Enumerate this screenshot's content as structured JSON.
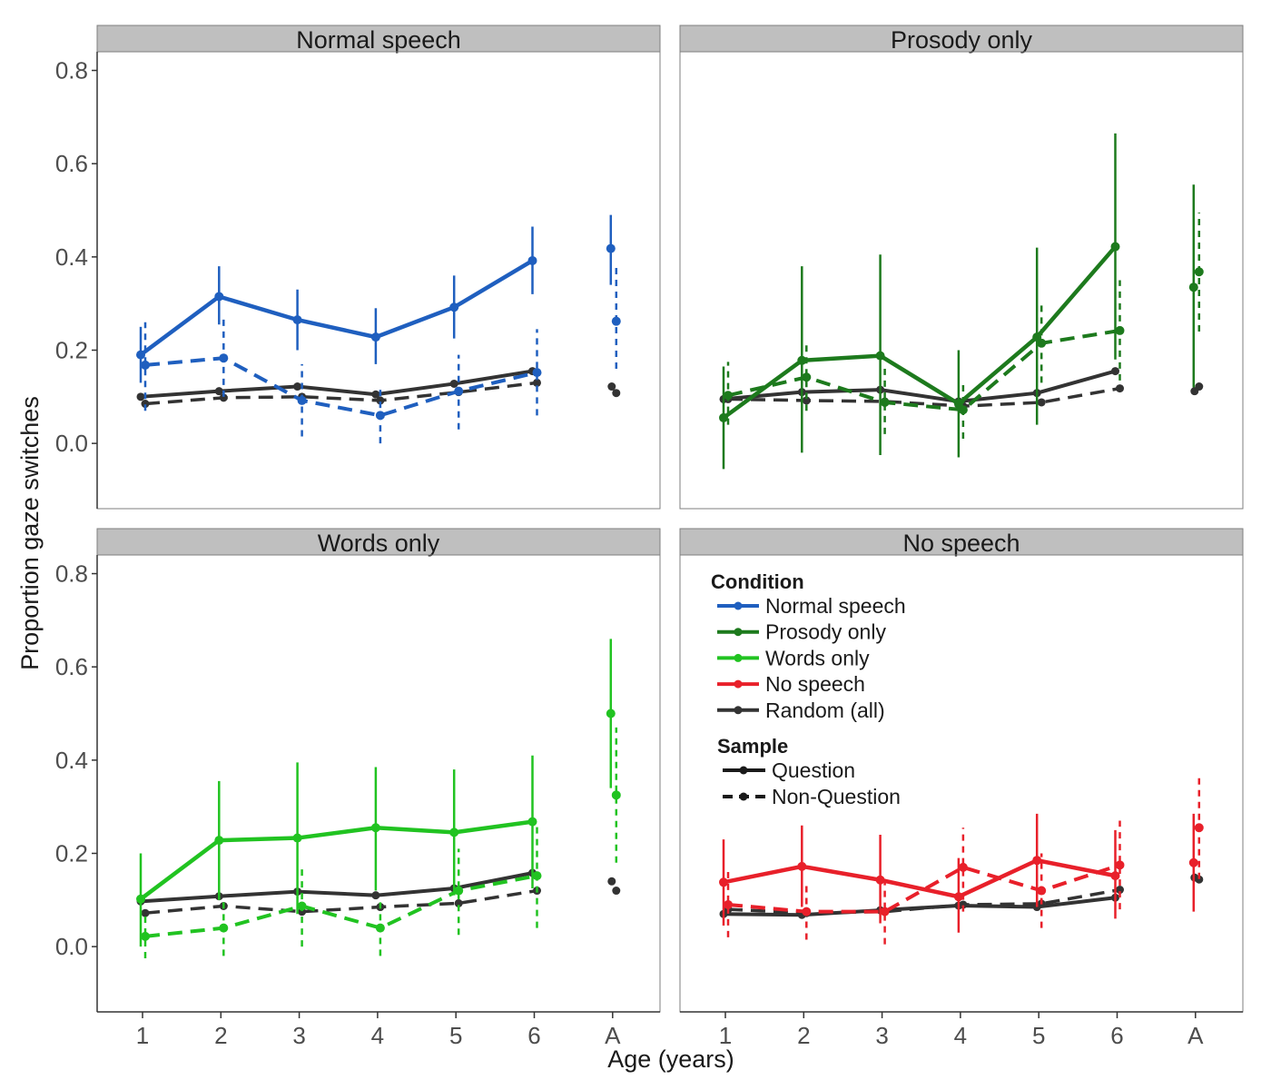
{
  "chart_data": {
    "type": "line",
    "xlabel": "Age (years)",
    "ylabel": "Proportion gaze switches",
    "x_categories": [
      "1",
      "2",
      "3",
      "4",
      "5",
      "6",
      "A"
    ],
    "ylim": [
      -0.14,
      0.84
    ],
    "yticks": [
      0.0,
      0.2,
      0.4,
      0.6,
      0.8
    ],
    "ytick_labels": [
      "0.0",
      "0.2",
      "0.4",
      "0.6",
      "0.8"
    ],
    "grid": false,
    "legend": {
      "position": "inside bottom-right panel",
      "condition_title": "Condition",
      "condition_entries": [
        {
          "label": "Normal speech",
          "color": "#1f5fbf"
        },
        {
          "label": "Prosody only",
          "color": "#1d7a1d"
        },
        {
          "label": "Words only",
          "color": "#21c321"
        },
        {
          "label": "No speech",
          "color": "#e8202a"
        },
        {
          "label": "Random (all)",
          "color": "#333333"
        }
      ],
      "sample_title": "Sample",
      "sample_entries": [
        {
          "label": "Question",
          "linestyle": "solid"
        },
        {
          "label": "Non-Question",
          "linestyle": "dashed"
        }
      ]
    },
    "panels": [
      {
        "title": "Normal speech",
        "color": "#1f5fbf",
        "question": {
          "y": [
            0.19,
            0.315,
            0.265,
            0.228,
            0.292,
            0.392
          ],
          "lo": [
            0.13,
            0.255,
            0.2,
            0.17,
            0.225,
            0.32
          ],
          "hi": [
            0.25,
            0.38,
            0.33,
            0.29,
            0.36,
            0.465
          ],
          "adult": {
            "y": 0.418,
            "lo": 0.34,
            "hi": 0.49
          }
        },
        "non_question": {
          "y": [
            0.168,
            0.183,
            0.092,
            0.06,
            0.112,
            0.152
          ],
          "lo": [
            0.07,
            0.1,
            0.015,
            0.0,
            0.03,
            0.06
          ],
          "hi": [
            0.26,
            0.27,
            0.17,
            0.12,
            0.19,
            0.245
          ],
          "adult": {
            "y": 0.262,
            "lo": 0.16,
            "hi": 0.38
          }
        },
        "random_question": {
          "y": [
            0.1,
            0.112,
            0.122,
            0.105,
            0.128,
            0.155
          ],
          "adult": 0.122
        },
        "random_non_question": {
          "y": [
            0.085,
            0.098,
            0.1,
            0.092,
            0.11,
            0.13
          ],
          "adult": 0.108
        }
      },
      {
        "title": "Prosody only",
        "color": "#1d7a1d",
        "question": {
          "y": [
            0.055,
            0.178,
            0.188,
            0.085,
            0.228,
            0.422
          ],
          "lo": [
            -0.055,
            -0.02,
            -0.025,
            -0.03,
            0.04,
            0.18
          ],
          "hi": [
            0.165,
            0.38,
            0.405,
            0.2,
            0.42,
            0.665
          ],
          "adult": {
            "y": 0.335,
            "lo": 0.12,
            "hi": 0.555
          }
        },
        "non_question": {
          "y": [
            0.103,
            0.142,
            0.088,
            0.072,
            0.215,
            0.242
          ],
          "lo": [
            0.04,
            0.07,
            0.02,
            0.01,
            0.13,
            0.135
          ],
          "hi": [
            0.175,
            0.215,
            0.16,
            0.13,
            0.3,
            0.35
          ],
          "adult": {
            "y": 0.368,
            "lo": 0.24,
            "hi": 0.495
          }
        },
        "random_question": {
          "y": [
            0.095,
            0.11,
            0.115,
            0.09,
            0.108,
            0.155
          ],
          "adult": 0.112
        },
        "random_non_question": {
          "y": [
            0.095,
            0.092,
            0.09,
            0.08,
            0.088,
            0.118
          ],
          "adult": 0.122
        }
      },
      {
        "title": "Words only",
        "color": "#21c321",
        "question": {
          "y": [
            0.102,
            0.228,
            0.233,
            0.255,
            0.245,
            0.268
          ],
          "lo": [
            0.0,
            0.1,
            0.07,
            0.12,
            0.11,
            0.125
          ],
          "hi": [
            0.2,
            0.355,
            0.395,
            0.385,
            0.38,
            0.41
          ],
          "adult": {
            "y": 0.5,
            "lo": 0.34,
            "hi": 0.66
          }
        },
        "non_question": {
          "y": [
            0.022,
            0.04,
            0.087,
            0.04,
            0.12,
            0.152
          ],
          "lo": [
            -0.025,
            -0.02,
            0.0,
            -0.02,
            0.025,
            0.04
          ],
          "hi": [
            0.07,
            0.1,
            0.175,
            0.1,
            0.21,
            0.265
          ],
          "adult": {
            "y": 0.325,
            "lo": 0.18,
            "hi": 0.47
          }
        },
        "random_question": {
          "y": [
            0.097,
            0.108,
            0.118,
            0.11,
            0.125,
            0.158
          ],
          "adult": 0.14
        },
        "random_non_question": {
          "y": [
            0.072,
            0.087,
            0.075,
            0.085,
            0.093,
            0.12
          ],
          "adult": 0.12
        }
      },
      {
        "title": "No speech",
        "color": "#e8202a",
        "question": {
          "y": [
            0.138,
            0.172,
            0.143,
            0.107,
            0.185,
            0.152
          ],
          "lo": [
            0.045,
            0.085,
            0.05,
            0.03,
            0.085,
            0.06
          ],
          "hi": [
            0.23,
            0.26,
            0.24,
            0.19,
            0.285,
            0.25
          ],
          "adult": {
            "y": 0.18,
            "lo": 0.075,
            "hi": 0.285
          }
        },
        "non_question": {
          "y": [
            0.09,
            0.075,
            0.075,
            0.17,
            0.12,
            0.175
          ],
          "lo": [
            0.02,
            0.015,
            0.005,
            0.075,
            0.04,
            0.08
          ],
          "hi": [
            0.16,
            0.14,
            0.145,
            0.255,
            0.2,
            0.27
          ],
          "adult": {
            "y": 0.255,
            "lo": 0.145,
            "hi": 0.365
          }
        },
        "random_question": {
          "y": [
            0.07,
            0.068,
            0.078,
            0.088,
            0.085,
            0.105
          ],
          "adult": 0.148
        },
        "random_non_question": {
          "y": [
            0.08,
            0.072,
            0.075,
            0.09,
            0.092,
            0.122
          ],
          "adult": 0.144
        }
      }
    ]
  }
}
